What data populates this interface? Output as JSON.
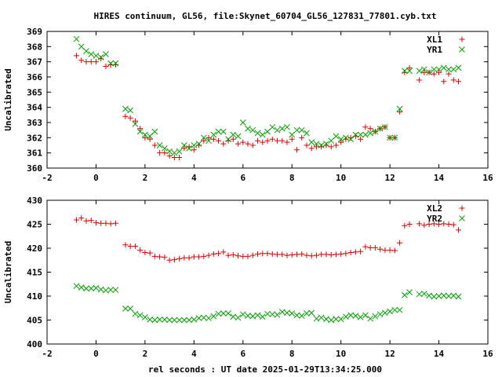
{
  "figure": {
    "title": "HIRES continuum, GL56, file:Skynet_60704_GL56_127831_77801.cyb.txt",
    "xlabel": "rel seconds : UT date 2025-01-29T13:34:25.000"
  },
  "chart_data": [
    {
      "type": "scatter",
      "title": "",
      "xlabel": "",
      "ylabel": "Uncalibrated",
      "xlim": [
        -2,
        16
      ],
      "ylim": [
        360,
        369
      ],
      "xticks": [
        -2,
        0,
        2,
        4,
        6,
        8,
        10,
        12,
        14,
        16
      ],
      "yticks": [
        360,
        361,
        362,
        363,
        364,
        365,
        366,
        367,
        368,
        369
      ],
      "grid": false,
      "legend": "top-right",
      "series": [
        {
          "name": "XL1",
          "marker": "plus",
          "color": "#e00000",
          "x": [
            -0.8,
            -0.6,
            -0.4,
            -0.2,
            0,
            0.2,
            0.4,
            0.6,
            0.8,
            1.2,
            1.4,
            1.6,
            1.8,
            2,
            2.2,
            2.4,
            2.6,
            2.8,
            3,
            3.2,
            3.4,
            3.6,
            3.8,
            4,
            4.2,
            4.4,
            4.6,
            4.8,
            5,
            5.2,
            5.4,
            5.6,
            5.8,
            6,
            6.2,
            6.4,
            6.6,
            6.8,
            7,
            7.2,
            7.4,
            7.6,
            7.8,
            8,
            8.2,
            8.4,
            8.6,
            8.8,
            9,
            9.2,
            9.4,
            9.6,
            9.8,
            10,
            10.2,
            10.4,
            10.6,
            10.8,
            11,
            11.2,
            11.4,
            11.6,
            11.8,
            12,
            12.2,
            12.4,
            12.6,
            12.8,
            13.2,
            13.4,
            13.6,
            13.8,
            14,
            14.2,
            14.4,
            14.6,
            14.8
          ],
          "y": [
            367.4,
            367.1,
            367,
            367,
            367,
            367.2,
            366.7,
            366.8,
            366.8,
            363.4,
            363.3,
            363.1,
            362.6,
            362,
            361.9,
            361.5,
            361,
            361,
            360.8,
            360.7,
            360.7,
            361.3,
            361.4,
            361.2,
            361.5,
            361.8,
            362,
            361.9,
            361.8,
            361.6,
            361.8,
            361.9,
            361.6,
            361.7,
            361.6,
            361.5,
            361.8,
            361.7,
            361.8,
            361.9,
            361.8,
            361.8,
            361.7,
            361.9,
            361.2,
            362,
            361.5,
            361.3,
            361.4,
            361.4,
            361.5,
            361.4,
            361.5,
            361.7,
            361.9,
            362,
            362.1,
            361.9,
            362.7,
            362.6,
            362.4,
            362.6,
            362.7,
            362,
            362,
            363.7,
            366.3,
            366.6,
            365.8,
            366.3,
            366.3,
            366.2,
            366.3,
            365.7,
            366.2,
            365.8,
            365.7
          ]
        },
        {
          "name": "YR1",
          "marker": "cross",
          "color": "#00a000",
          "x": [
            -0.8,
            -0.6,
            -0.4,
            -0.2,
            0,
            0.2,
            0.4,
            0.6,
            0.8,
            1.2,
            1.4,
            1.6,
            1.8,
            2,
            2.2,
            2.4,
            2.6,
            2.8,
            3,
            3.2,
            3.4,
            3.6,
            3.8,
            4,
            4.2,
            4.4,
            4.6,
            4.8,
            5,
            5.2,
            5.4,
            5.6,
            5.8,
            6,
            6.2,
            6.4,
            6.6,
            6.8,
            7,
            7.2,
            7.4,
            7.6,
            7.8,
            8,
            8.2,
            8.4,
            8.6,
            8.8,
            9,
            9.2,
            9.4,
            9.6,
            9.8,
            10,
            10.2,
            10.4,
            10.6,
            10.8,
            11,
            11.2,
            11.4,
            11.6,
            11.8,
            12,
            12.2,
            12.4,
            12.6,
            12.8,
            13.2,
            13.4,
            13.6,
            13.8,
            14,
            14.2,
            14.4,
            14.6,
            14.8
          ],
          "y": [
            368.5,
            368,
            367.7,
            367.5,
            367.4,
            367.3,
            367.5,
            366.9,
            366.9,
            363.9,
            363.8,
            362.9,
            362.4,
            362.2,
            362.1,
            362.4,
            361.5,
            361.3,
            361.1,
            361,
            361.1,
            361.5,
            361.3,
            361.5,
            361.6,
            362,
            361.8,
            362.2,
            362.4,
            362.4,
            361.9,
            362.2,
            362.1,
            363,
            362.6,
            362.5,
            362.3,
            362.2,
            362.4,
            362.7,
            362.5,
            362.6,
            362.7,
            362.2,
            362.5,
            362.5,
            362.3,
            361.7,
            361.6,
            361.5,
            361.6,
            361.8,
            362.1,
            361.9,
            362,
            361.9,
            362.2,
            362.2,
            362.2,
            362.3,
            362.4,
            362.6,
            362.7,
            362,
            362,
            363.9,
            366.4,
            366.4,
            366.4,
            366.5,
            366.3,
            366.5,
            366.5,
            366.6,
            366.5,
            366.5,
            366.6
          ]
        }
      ]
    },
    {
      "type": "scatter",
      "title": "",
      "xlabel": "",
      "ylabel": "Uncalibrated",
      "xlim": [
        -2,
        16
      ],
      "ylim": [
        400,
        430
      ],
      "xticks": [
        -2,
        0,
        2,
        4,
        6,
        8,
        10,
        12,
        14,
        16
      ],
      "yticks": [
        400,
        405,
        410,
        415,
        420,
        425,
        430
      ],
      "grid": false,
      "legend": "top-right",
      "series": [
        {
          "name": "XL2",
          "marker": "plus",
          "color": "#e00000",
          "x": [
            -0.8,
            -0.6,
            -0.4,
            -0.2,
            0,
            0.2,
            0.4,
            0.6,
            0.8,
            1.2,
            1.4,
            1.6,
            1.8,
            2,
            2.2,
            2.4,
            2.6,
            2.8,
            3,
            3.2,
            3.4,
            3.6,
            3.8,
            4,
            4.2,
            4.4,
            4.6,
            4.8,
            5,
            5.2,
            5.4,
            5.6,
            5.8,
            6,
            6.2,
            6.4,
            6.6,
            6.8,
            7,
            7.2,
            7.4,
            7.6,
            7.8,
            8,
            8.2,
            8.4,
            8.6,
            8.8,
            9,
            9.2,
            9.4,
            9.6,
            9.8,
            10,
            10.2,
            10.4,
            10.6,
            10.8,
            11,
            11.2,
            11.4,
            11.6,
            11.8,
            12,
            12.2,
            12.4,
            12.6,
            12.8,
            13.2,
            13.4,
            13.6,
            13.8,
            14,
            14.2,
            14.4,
            14.6,
            14.8
          ],
          "y": [
            425.9,
            426.3,
            425.7,
            425.8,
            425.3,
            425.2,
            425.2,
            425.1,
            425.2,
            420.7,
            420.4,
            420.4,
            419.6,
            419.1,
            419,
            418.3,
            418.2,
            418.1,
            417.5,
            417.6,
            417.8,
            418,
            418,
            418.2,
            418.2,
            418.3,
            418.5,
            418.8,
            418.9,
            419.2,
            418.5,
            418.6,
            418.4,
            418.3,
            418.3,
            418.5,
            418.8,
            418.9,
            418.9,
            418.8,
            418.7,
            418.7,
            418.5,
            418.6,
            418.7,
            418.8,
            418.5,
            418.4,
            418.5,
            418.7,
            418.7,
            418.6,
            418.7,
            418.8,
            418.9,
            419.1,
            419.2,
            419.3,
            420.3,
            420.1,
            420.1,
            419.8,
            419.6,
            419.6,
            419.5,
            421.1,
            424.7,
            425,
            425.1,
            424.8,
            425,
            425.1,
            425,
            425.1,
            425,
            424.9,
            423.8
          ]
        },
        {
          "name": "YR2",
          "marker": "cross",
          "color": "#00a000",
          "x": [
            -0.8,
            -0.6,
            -0.4,
            -0.2,
            0,
            0.2,
            0.4,
            0.6,
            0.8,
            1.2,
            1.4,
            1.6,
            1.8,
            2,
            2.2,
            2.4,
            2.6,
            2.8,
            3,
            3.2,
            3.4,
            3.6,
            3.8,
            4,
            4.2,
            4.4,
            4.6,
            4.8,
            5,
            5.2,
            5.4,
            5.6,
            5.8,
            6,
            6.2,
            6.4,
            6.6,
            6.8,
            7,
            7.2,
            7.4,
            7.6,
            7.8,
            8,
            8.2,
            8.4,
            8.6,
            8.8,
            9,
            9.2,
            9.4,
            9.6,
            9.8,
            10,
            10.2,
            10.4,
            10.6,
            10.8,
            11,
            11.2,
            11.4,
            11.6,
            11.8,
            12,
            12.2,
            12.4,
            12.6,
            12.8,
            13.2,
            13.4,
            13.6,
            13.8,
            14,
            14.2,
            14.4,
            14.6,
            14.8
          ],
          "y": [
            412.1,
            411.8,
            411.6,
            411.6,
            411.7,
            411.4,
            411.2,
            411.3,
            411.3,
            407.4,
            407.4,
            406.3,
            406,
            405.6,
            405.1,
            405,
            405.1,
            405.1,
            405,
            405,
            405,
            405,
            405,
            405.1,
            405.4,
            405.5,
            405.4,
            405.8,
            406.3,
            406.4,
            406.4,
            405.7,
            405.5,
            406.2,
            405.9,
            405.8,
            406,
            405.7,
            406.3,
            406.2,
            406.1,
            406.7,
            406.5,
            406.4,
            406,
            405.9,
            406.4,
            406.5,
            405.3,
            405.5,
            405.2,
            405,
            405.2,
            405.2,
            405.7,
            406,
            405.9,
            405.6,
            406,
            405.3,
            405.8,
            406.2,
            406.5,
            406.8,
            407.1,
            407.1,
            410.2,
            410.8,
            410.4,
            410.5,
            410.1,
            409.9,
            410,
            410.1,
            410,
            410.1,
            409.9
          ]
        }
      ]
    }
  ]
}
